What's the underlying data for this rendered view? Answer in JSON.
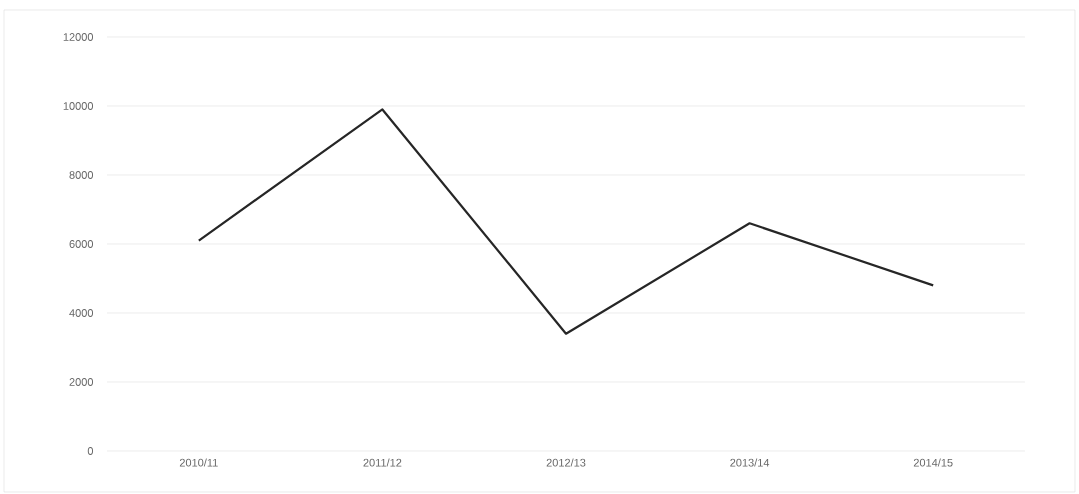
{
  "chart_data": {
    "type": "line",
    "categories": [
      "2010/11",
      "2011/12",
      "2012/13",
      "2013/14",
      "2014/15"
    ],
    "series": [
      {
        "color": "#262626",
        "values": [
          6100,
          9900,
          3400,
          6600,
          4800
        ]
      }
    ],
    "ylim": [
      0,
      12000
    ],
    "yticks": [
      0,
      2000,
      4000,
      6000,
      8000,
      10000,
      12000
    ],
    "grid": "y",
    "legend": false,
    "marker": "none",
    "line_style": "solid"
  }
}
